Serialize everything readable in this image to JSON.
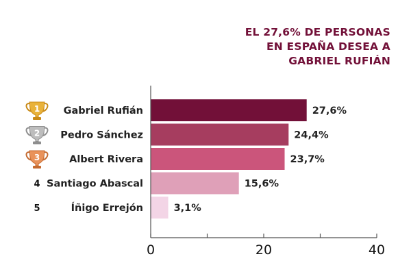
{
  "chart_data": {
    "type": "bar",
    "orientation": "horizontal",
    "title_lines": [
      "EL 27,6% DE PERSONAS",
      "EN ESPAÑA DESEA A",
      "GABRIEL RUFIÁN"
    ],
    "categories": [
      "Gabriel Rufián",
      "Pedro Sánchez",
      "Albert Rivera",
      "Santiago Abascal",
      "Íñigo Errejón"
    ],
    "ranks": [
      "1",
      "2",
      "3",
      "4",
      "5"
    ],
    "rank_icons": [
      "gold-trophy-icon",
      "silver-trophy-icon",
      "bronze-trophy-icon",
      null,
      null
    ],
    "values": [
      27.6,
      24.4,
      23.7,
      15.6,
      3.1
    ],
    "value_labels": [
      "27,6%",
      "24,4%",
      "23,7%",
      "15,6%",
      "3,1%"
    ],
    "colors": [
      "#721038",
      "#a63d5f",
      "#cb557b",
      "#dfa0b8",
      "#f3d5e6"
    ],
    "xlim": [
      0,
      40
    ],
    "major_ticks": [
      0,
      20,
      40
    ],
    "minor_ticks": [
      10,
      30
    ],
    "tick_labels": [
      "0",
      "20",
      "40"
    ],
    "xlabel": "",
    "ylabel": "",
    "grid": false
  }
}
